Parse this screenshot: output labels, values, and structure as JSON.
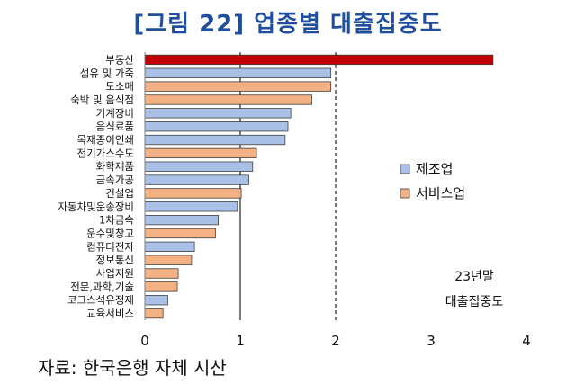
{
  "page": {
    "title": "[그림 22] 업종별 대출집중도",
    "source": "자료: 한국은행 자체 시산"
  },
  "chart_data": {
    "type": "bar",
    "orientation": "horizontal",
    "title": "[그림 22] 업종별 대출집중도",
    "xlabel": "",
    "ylabel": "",
    "xlim": [
      0,
      4
    ],
    "xticks": [
      0,
      1,
      2,
      3,
      4
    ],
    "reference_lines": [
      {
        "x": 1,
        "style": "solid"
      },
      {
        "x": 2,
        "style": "dashed"
      }
    ],
    "legend": [
      {
        "name": "제조업",
        "color": "#a9c1e6"
      },
      {
        "name": "서비스업",
        "color": "#f4b183"
      }
    ],
    "annotation": [
      "23년말",
      "대출집중도"
    ],
    "highlight_color": "#c00000",
    "categories": [
      {
        "label": "부동산",
        "value": 3.65,
        "group": "highlight"
      },
      {
        "label": "섬유 및 가죽",
        "value": 1.95,
        "group": "제조업"
      },
      {
        "label": "도소매",
        "value": 1.95,
        "group": "서비스업"
      },
      {
        "label": "숙박 및 음식점",
        "value": 1.75,
        "group": "서비스업"
      },
      {
        "label": "기계장비",
        "value": 1.53,
        "group": "제조업"
      },
      {
        "label": "음식료품",
        "value": 1.5,
        "group": "제조업"
      },
      {
        "label": "목재종이인쇄",
        "value": 1.47,
        "group": "제조업"
      },
      {
        "label": "전기가스수도",
        "value": 1.17,
        "group": "서비스업"
      },
      {
        "label": "화학제품",
        "value": 1.13,
        "group": "제조업"
      },
      {
        "label": "금속가공",
        "value": 1.09,
        "group": "제조업"
      },
      {
        "label": "건설업",
        "value": 1.01,
        "group": "서비스업"
      },
      {
        "label": "자동차및운송장비",
        "value": 0.97,
        "group": "제조업"
      },
      {
        "label": "1차금속",
        "value": 0.77,
        "group": "제조업"
      },
      {
        "label": "운수및창고",
        "value": 0.74,
        "group": "서비스업"
      },
      {
        "label": "컴퓨터전자",
        "value": 0.52,
        "group": "제조업"
      },
      {
        "label": "정보통신",
        "value": 0.49,
        "group": "서비스업"
      },
      {
        "label": "사업지원",
        "value": 0.35,
        "group": "서비스업"
      },
      {
        "label": "전문,과학,기술",
        "value": 0.34,
        "group": "서비스업"
      },
      {
        "label": "코크스석유정제",
        "value": 0.24,
        "group": "제조업"
      },
      {
        "label": "교육서비스",
        "value": 0.19,
        "group": "서비스업"
      }
    ]
  }
}
